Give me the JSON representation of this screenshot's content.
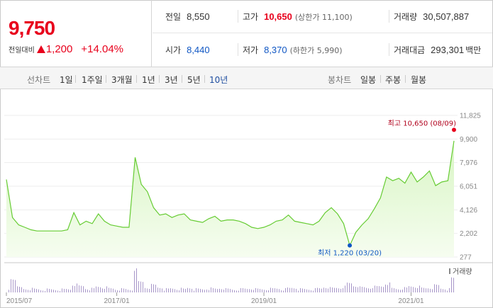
{
  "quote": {
    "price": "9,750",
    "change_label": "전일대비",
    "change_value": "1,200",
    "change_pct": "+14.04%"
  },
  "stats": {
    "prev_close_label": "전일",
    "prev_close": "8,550",
    "high_label": "고가",
    "high": "10,650",
    "upper_limit": "(상한가 11,100)",
    "volume_label": "거래량",
    "volume": "30,507,887",
    "open_label": "시가",
    "open": "8,440",
    "low_label": "저가",
    "low": "8,370",
    "lower_limit": "(하한가 5,990)",
    "value_label": "거래대금",
    "value": "293,301",
    "value_unit": "백만"
  },
  "tabs": {
    "line_label": "선차트",
    "line_periods": [
      "1일",
      "1주일",
      "3개월",
      "1년",
      "3년",
      "5년",
      "10년"
    ],
    "active_period": "10년",
    "candle_label": "봉차트",
    "candle_periods": [
      "일봉",
      "주봉",
      "월봉"
    ]
  },
  "colors": {
    "up": "#e8001c",
    "down": "#1057c4",
    "line": "#66cc33",
    "fill_top": "#d8f5c4",
    "fill_bottom": "#f6fdf0",
    "volume": "#a897c9"
  },
  "chart_data": {
    "type": "area",
    "period": "10년",
    "y_ticks": [
      "11,825",
      "9,900",
      "7,976",
      "6,051",
      "4,126",
      "2,202",
      "277"
    ],
    "ylim": [
      277,
      11825
    ],
    "x_ticks": [
      "2015/07",
      "2017/01",
      "2019/01",
      "2021/01"
    ],
    "xlim": [
      "2015/07",
      "2021/08"
    ],
    "high_annotation": "최고 10,650 (08/09)",
    "low_annotation": "최저 1,220 (03/20)",
    "volume_legend": "거래량",
    "series": [
      {
        "x": [
          "2015-07",
          "2015-08",
          "2015-09",
          "2015-10",
          "2015-11",
          "2015-12",
          "2016-01",
          "2016-02",
          "2016-03",
          "2016-04",
          "2016-05",
          "2016-06",
          "2016-07",
          "2016-08",
          "2016-09",
          "2016-10",
          "2016-11",
          "2016-12",
          "2017-01",
          "2017-02",
          "2017-03",
          "2017-04",
          "2017-05",
          "2017-06",
          "2017-07",
          "2017-08",
          "2017-09",
          "2017-10",
          "2017-11",
          "2017-12",
          "2018-01",
          "2018-02",
          "2018-03",
          "2018-04",
          "2018-05",
          "2018-06",
          "2018-07",
          "2018-08",
          "2018-09",
          "2018-10",
          "2018-11",
          "2018-12",
          "2019-01",
          "2019-02",
          "2019-03",
          "2019-04",
          "2019-05",
          "2019-06",
          "2019-07",
          "2019-08",
          "2019-09",
          "2019-10",
          "2019-11",
          "2019-12",
          "2020-01",
          "2020-02",
          "2020-03",
          "2020-04",
          "2020-05",
          "2020-06",
          "2020-07",
          "2020-08",
          "2020-09",
          "2020-10",
          "2020-11",
          "2020-12",
          "2021-01",
          "2021-02",
          "2021-03",
          "2021-04",
          "2021-05",
          "2021-06",
          "2021-07",
          "2021-08"
        ],
        "y": [
          6600,
          3500,
          2900,
          2700,
          2500,
          2400,
          2400,
          2400,
          2400,
          2400,
          2500,
          3900,
          2900,
          3200,
          3000,
          3800,
          3200,
          2900,
          2800,
          2700,
          2700,
          8400,
          6200,
          5600,
          4300,
          3700,
          3800,
          3500,
          3700,
          3800,
          3300,
          3200,
          3100,
          3400,
          3600,
          3200,
          3300,
          3300,
          3200,
          3000,
          2700,
          2600,
          2700,
          2900,
          3200,
          3300,
          3700,
          3200,
          3100,
          3000,
          2900,
          3200,
          3900,
          4300,
          3800,
          3000,
          1220,
          2300,
          2900,
          3400,
          4200,
          5100,
          6800,
          6500,
          6700,
          6300,
          7200,
          6400,
          6800,
          7300,
          6100,
          6400,
          6500,
          9750
        ]
      }
    ]
  }
}
